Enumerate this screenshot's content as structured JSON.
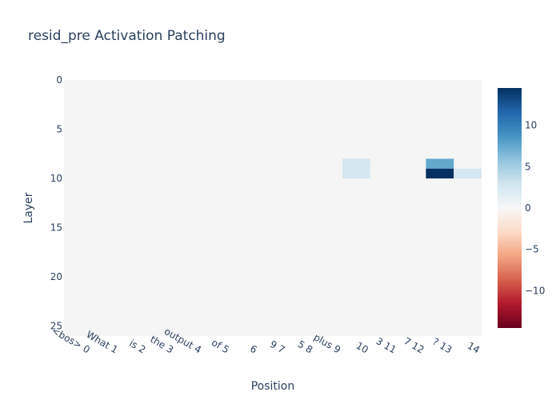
{
  "chart_data": {
    "type": "heatmap",
    "title": "resid_pre Activation Patching",
    "xlabel": "Position",
    "ylabel": "Layer",
    "x_categories": [
      "<bos> 0",
      "What 1",
      "is 2",
      "the 3",
      "output 4",
      "of 5",
      "6",
      "9 7",
      "5 8",
      "plus 9",
      "10",
      "3 11",
      "7 12",
      "? 13",
      "14"
    ],
    "y_ticks": [
      0,
      5,
      10,
      15,
      20,
      25
    ],
    "n_layers": 26,
    "default_value": 0,
    "nonzero_cells": [
      {
        "layer": 8,
        "position": 10,
        "value": 2.5
      },
      {
        "layer": 9,
        "position": 10,
        "value": 2.5
      },
      {
        "layer": 8,
        "position": 13,
        "value": 7.5
      },
      {
        "layer": 9,
        "position": 13,
        "value": 14.5
      },
      {
        "layer": 9,
        "position": 14,
        "value": 2.5
      }
    ],
    "colorscale": {
      "name": "RdBu",
      "zmin": -14.5,
      "zmax": 14.5,
      "stops": [
        "#67001f",
        "#b2182b",
        "#d6604d",
        "#f4a582",
        "#fddbc7",
        "#f7f7f7",
        "#d1e5f0",
        "#92c5de",
        "#4393c3",
        "#2166ac",
        "#053061"
      ]
    },
    "colorbar_ticks": [
      10,
      5,
      0,
      -5,
      -10
    ],
    "colorbar_tick_labels": [
      "10",
      "5",
      "0",
      "−5",
      "−10"
    ]
  }
}
